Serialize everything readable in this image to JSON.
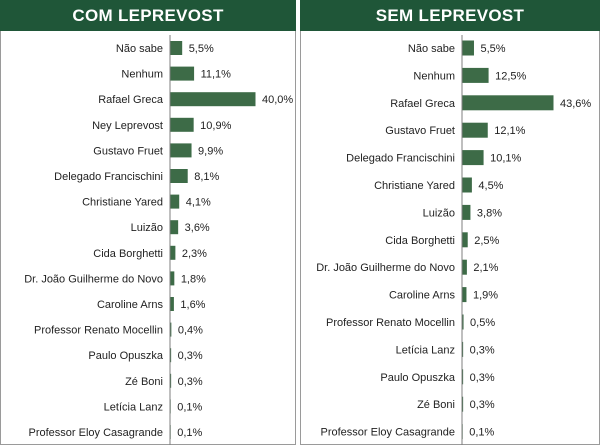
{
  "chart_data": [
    {
      "type": "bar",
      "orientation": "horizontal",
      "title": "COM LEPREVOST",
      "categories": [
        "Não sabe",
        "Nenhum",
        "Rafael Greca",
        "Ney Leprevost",
        "Gustavo Fruet",
        "Delegado Francischini",
        "Christiane Yared",
        "Luizão",
        "Cida Borghetti",
        "Dr. João Guilherme do Novo",
        "Caroline Arns",
        "Professor Renato Mocellin",
        "Paulo Opuszka",
        "Zé Boni",
        "Letícia Lanz",
        "Professor Eloy Casagrande"
      ],
      "values": [
        5.5,
        11.1,
        40.0,
        10.9,
        9.9,
        8.1,
        4.1,
        3.6,
        2.3,
        1.8,
        1.6,
        0.4,
        0.3,
        0.3,
        0.1,
        0.1
      ],
      "value_labels": [
        "5,5%",
        "11,1%",
        "40,0%",
        "10,9%",
        "9,9%",
        "8,1%",
        "4,1%",
        "3,6%",
        "2,3%",
        "1,8%",
        "1,6%",
        "0,4%",
        "0,3%",
        "0,3%",
        "0,1%",
        "0,1%"
      ],
      "bar_color": "#3d6b47",
      "header_color": "#1f5638"
    },
    {
      "type": "bar",
      "orientation": "horizontal",
      "title": "SEM LEPREVOST",
      "categories": [
        "Não sabe",
        "Nenhum",
        "Rafael Greca",
        "Gustavo Fruet",
        "Delegado Francischini",
        "Christiane Yared",
        "Luizão",
        "Cida Borghetti",
        "Dr. João Guilherme do Novo",
        "Caroline Arns",
        "Professor Renato Mocellin",
        "Letícia Lanz",
        "Paulo Opuszka",
        "Zé Boni",
        "Professor Eloy Casagrande"
      ],
      "values": [
        5.5,
        12.5,
        43.6,
        12.1,
        10.1,
        4.5,
        3.8,
        2.5,
        2.1,
        1.9,
        0.5,
        0.3,
        0.3,
        0.3,
        0.1
      ],
      "value_labels": [
        "5,5%",
        "12,5%",
        "43,6%",
        "12,1%",
        "10,1%",
        "4,5%",
        "3,8%",
        "2,5%",
        "2,1%",
        "1,9%",
        "0,5%",
        "0,3%",
        "0,3%",
        "0,3%",
        "0,1%"
      ],
      "bar_color": "#3d6b47",
      "header_color": "#1f5638"
    }
  ]
}
